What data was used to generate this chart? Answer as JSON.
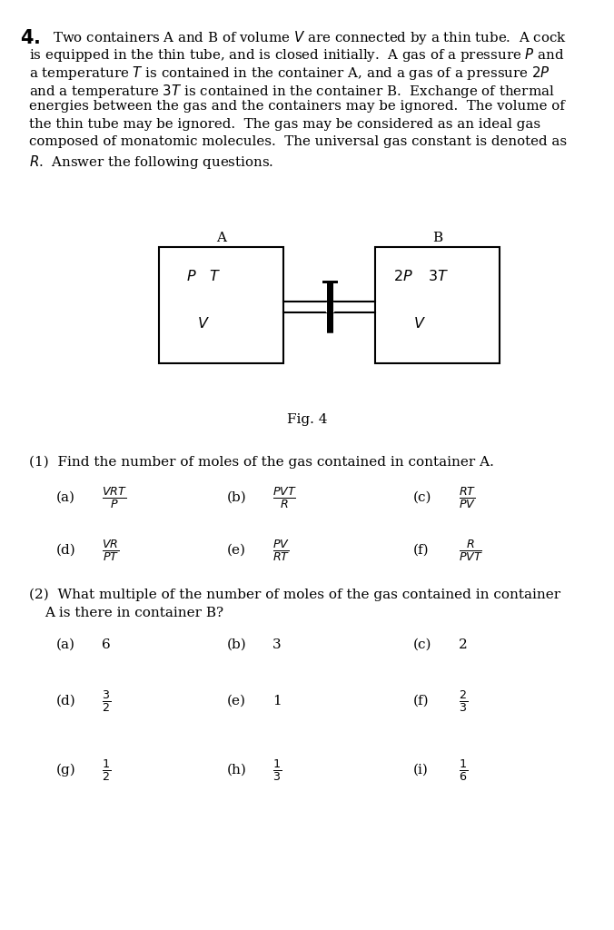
{
  "background_color": "#ffffff",
  "fig_width": 6.76,
  "fig_height": 10.24,
  "problem_number": "4.",
  "problem_text_lines": [
    "Two containers A and B of volume $V$ are connected by a thin tube.  A cock",
    "is equipped in the thin tube, and is closed initially.  A gas of a pressure $P$ and",
    "a temperature $T$ is contained in the container A, and a gas of a pressure $2P$",
    "and a temperature $3T$ is contained in the container B.  Exchange of thermal",
    "energies between the gas and the containers may be ignored.  The volume of",
    "the thin tube may be ignored.  The gas may be considered as an ideal gas",
    "composed of monatomic molecules.  The universal gas constant is denoted as",
    "$R$.  Answer the following questions."
  ],
  "fig_caption": "Fig. 4",
  "q1_label": "(1)  Find the number of moles of the gas contained in container A.",
  "q2_label_line1": "(2)  What multiple of the number of moles of the gas contained in container",
  "q2_label_line2": "A is there in container B?"
}
